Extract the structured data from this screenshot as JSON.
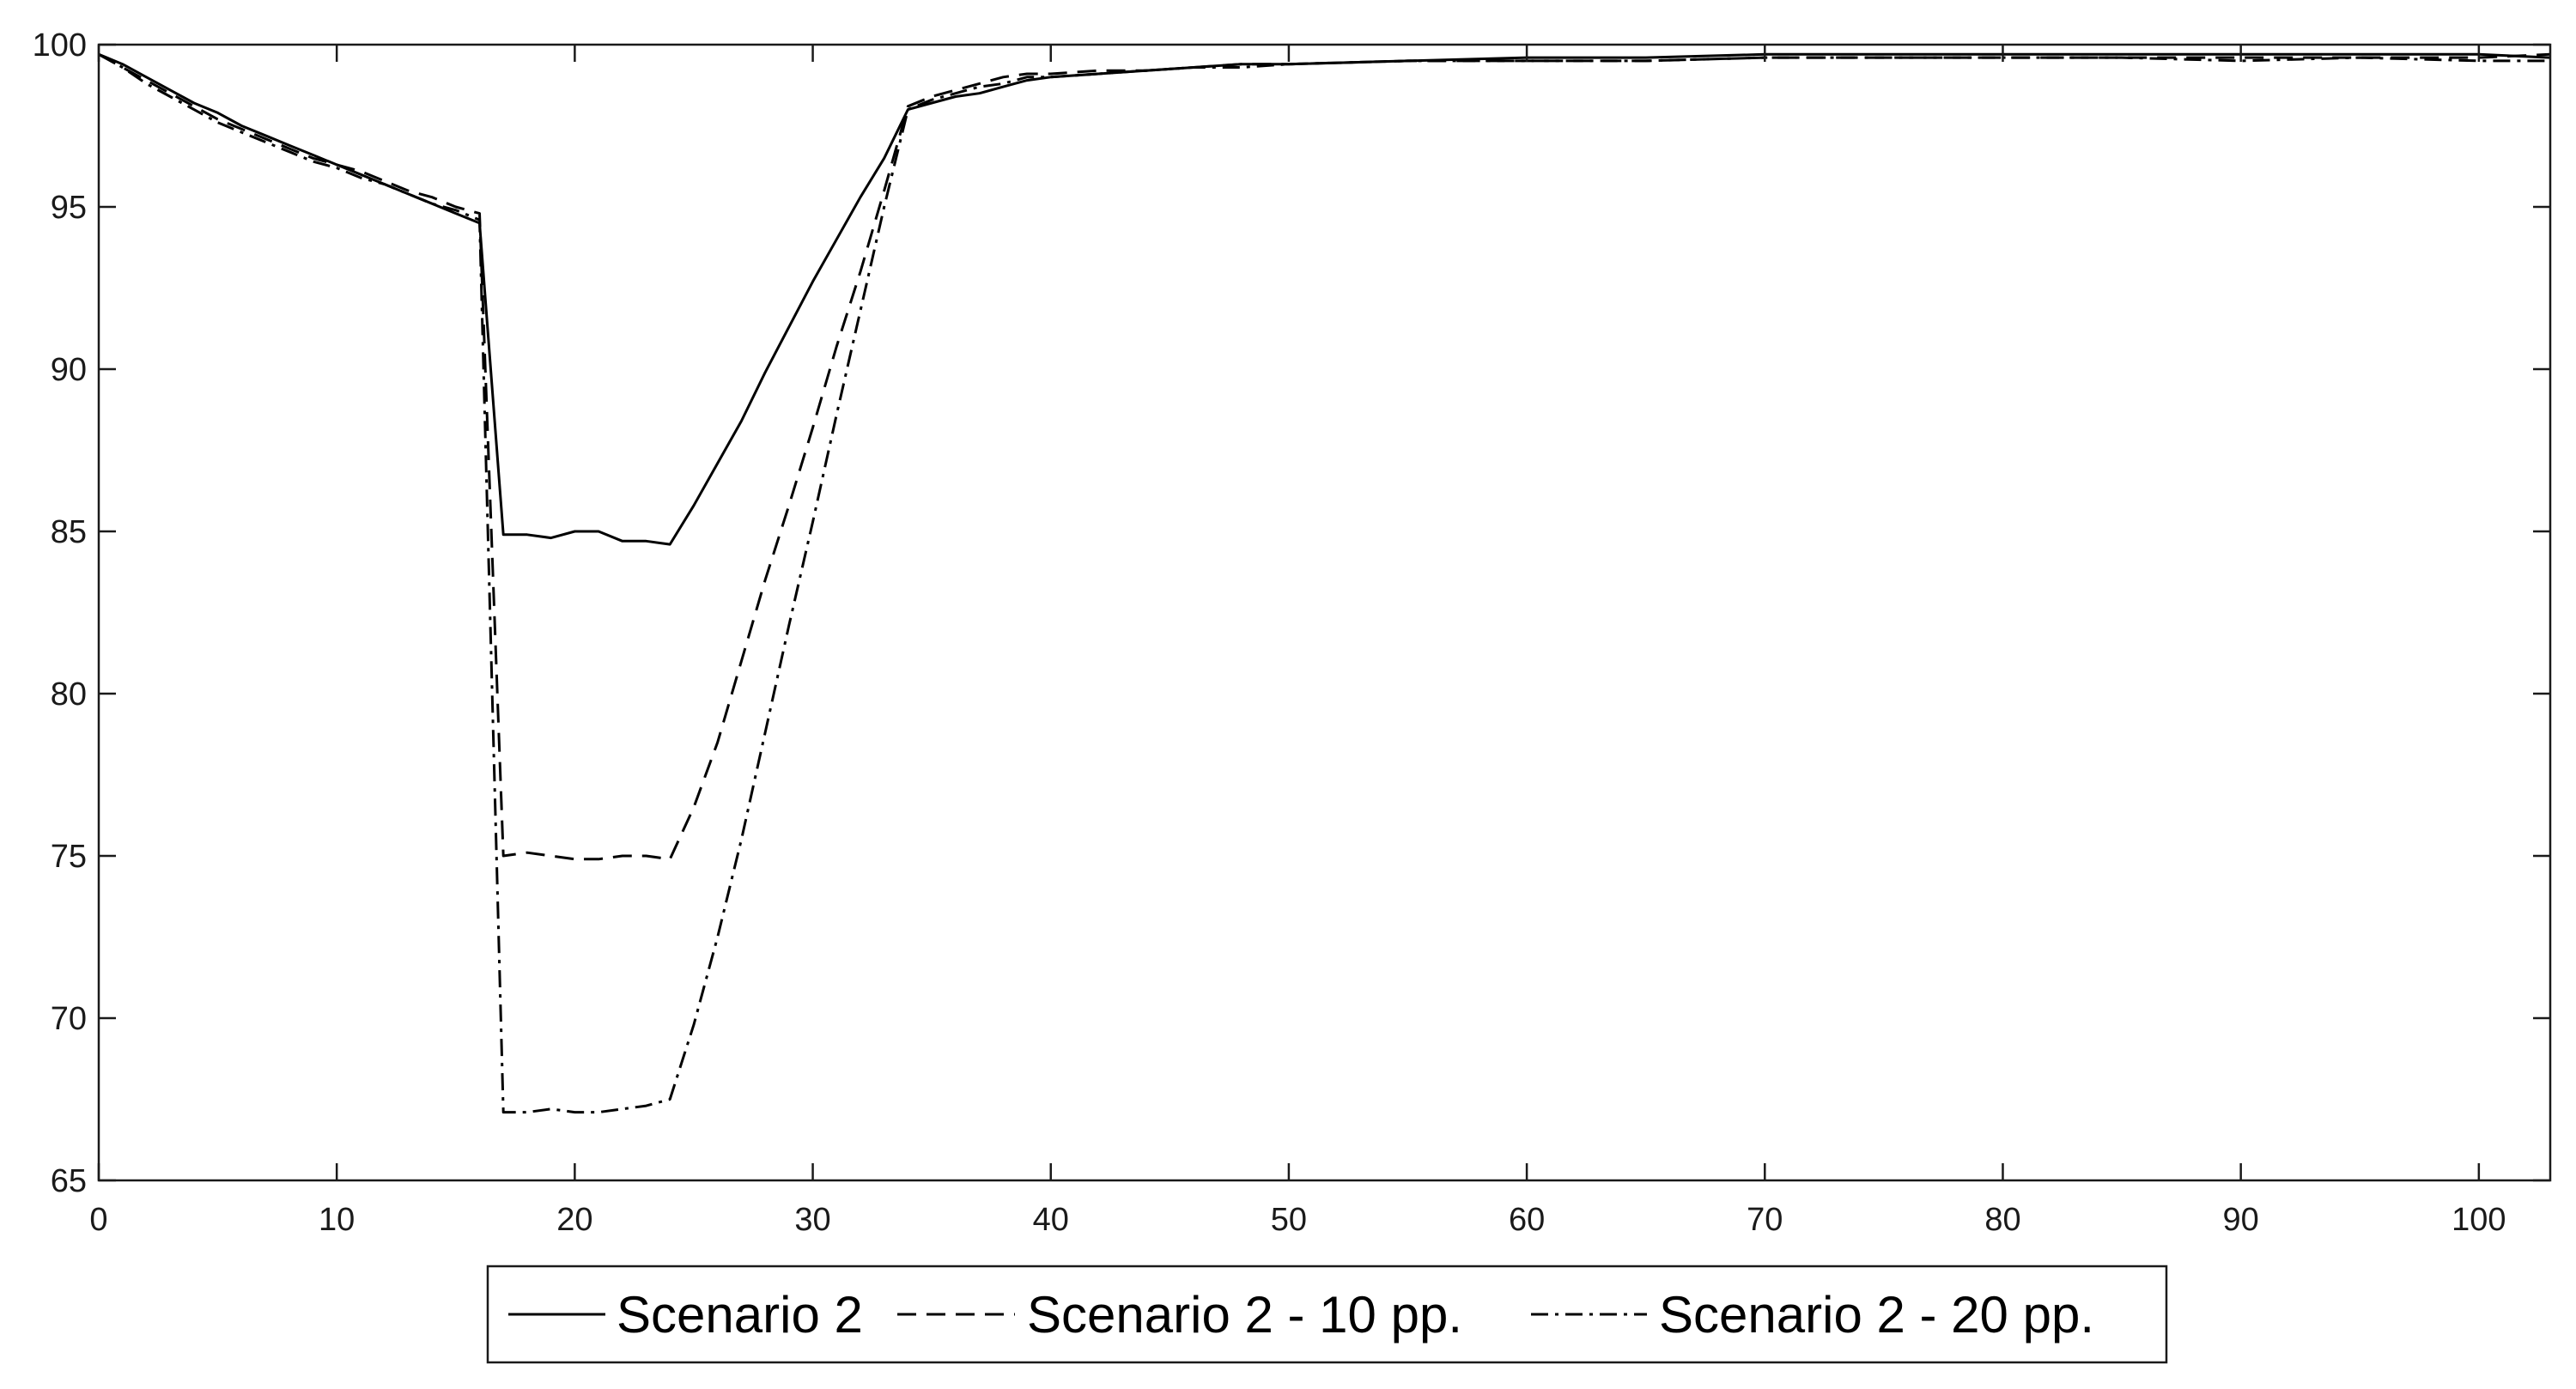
{
  "chart_data": {
    "type": "line",
    "title": "",
    "xlabel": "",
    "ylabel": "",
    "xlim": [
      0,
      103
    ],
    "ylim": [
      65,
      100
    ],
    "xticks": [
      0,
      10,
      20,
      30,
      40,
      50,
      60,
      70,
      80,
      90,
      100
    ],
    "yticks": [
      65,
      70,
      75,
      80,
      85,
      90,
      95,
      100
    ],
    "grid": false,
    "legend_position": "bottom-outside",
    "series": [
      {
        "name": "Scenario 2",
        "style": "solid",
        "color": "#000000",
        "x": [
          0,
          1,
          2,
          3,
          4,
          5,
          6,
          7,
          8,
          9,
          10,
          11,
          12,
          13,
          14,
          15,
          16,
          17,
          18,
          19,
          20,
          21,
          22,
          23,
          24,
          25,
          26,
          27,
          28,
          29,
          30,
          31,
          32,
          33,
          34,
          35,
          36,
          37,
          38,
          39,
          40,
          42,
          44,
          46,
          48,
          50,
          55,
          60,
          65,
          70,
          75,
          80,
          85,
          90,
          95,
          100,
          103
        ],
        "y": [
          99.7,
          99.4,
          99.0,
          98.6,
          98.2,
          97.9,
          97.5,
          97.2,
          96.9,
          96.6,
          96.3,
          96.0,
          95.7,
          95.4,
          95.1,
          94.8,
          94.5,
          84.9,
          84.9,
          84.8,
          85.0,
          85.0,
          84.7,
          84.7,
          84.6,
          85.8,
          87.1,
          88.4,
          89.9,
          91.3,
          92.7,
          94.0,
          95.3,
          96.5,
          98.0,
          98.2,
          98.4,
          98.5,
          98.7,
          98.9,
          99.0,
          99.1,
          99.2,
          99.3,
          99.4,
          99.4,
          99.5,
          99.6,
          99.6,
          99.7,
          99.7,
          99.7,
          99.7,
          99.7,
          99.7,
          99.7,
          99.6
        ]
      },
      {
        "name": "Scenario 2 - 10 pp.",
        "style": "dashed",
        "color": "#000000",
        "x": [
          0,
          1,
          2,
          3,
          4,
          5,
          6,
          7,
          8,
          9,
          10,
          11,
          12,
          13,
          14,
          15,
          16,
          17,
          18,
          19,
          20,
          21,
          22,
          23,
          24,
          25,
          26,
          27,
          28,
          29,
          30,
          31,
          32,
          33,
          34,
          35,
          36,
          37,
          38,
          39,
          40,
          42,
          44,
          46,
          48,
          50,
          55,
          60,
          65,
          70,
          75,
          80,
          85,
          90,
          95,
          100,
          103
        ],
        "y": [
          99.7,
          99.3,
          98.9,
          98.5,
          98.1,
          97.7,
          97.4,
          97.1,
          96.8,
          96.5,
          96.3,
          96.1,
          95.8,
          95.5,
          95.3,
          95.0,
          94.8,
          75.0,
          75.1,
          75.0,
          74.9,
          74.9,
          75.0,
          75.0,
          74.9,
          76.5,
          78.5,
          81.0,
          83.5,
          85.8,
          88.2,
          90.7,
          93.0,
          95.5,
          98.1,
          98.4,
          98.6,
          98.8,
          99.0,
          99.1,
          99.1,
          99.2,
          99.2,
          99.3,
          99.4,
          99.4,
          99.5,
          99.5,
          99.5,
          99.6,
          99.6,
          99.6,
          99.6,
          99.6,
          99.6,
          99.6,
          99.7
        ]
      },
      {
        "name": "Scenario 2 - 20 pp.",
        "style": "dashdot",
        "color": "#000000",
        "x": [
          0,
          1,
          2,
          3,
          4,
          5,
          6,
          7,
          8,
          9,
          10,
          11,
          12,
          13,
          14,
          15,
          16,
          17,
          18,
          19,
          20,
          21,
          22,
          23,
          24,
          25,
          26,
          27,
          28,
          29,
          30,
          31,
          32,
          33,
          34,
          35,
          36,
          37,
          38,
          39,
          40,
          42,
          44,
          46,
          48,
          50,
          55,
          60,
          65,
          70,
          75,
          80,
          85,
          90,
          95,
          100,
          103
        ],
        "y": [
          99.7,
          99.3,
          98.8,
          98.4,
          98.0,
          97.6,
          97.3,
          97.0,
          96.7,
          96.4,
          96.2,
          95.9,
          95.7,
          95.4,
          95.1,
          94.9,
          94.6,
          67.1,
          67.1,
          67.2,
          67.1,
          67.1,
          67.2,
          67.3,
          67.5,
          69.8,
          72.5,
          75.5,
          78.8,
          82.1,
          85.3,
          88.6,
          91.8,
          95.0,
          98.0,
          98.3,
          98.5,
          98.7,
          98.8,
          99.0,
          99.0,
          99.1,
          99.2,
          99.3,
          99.3,
          99.4,
          99.5,
          99.5,
          99.5,
          99.6,
          99.6,
          99.6,
          99.6,
          99.5,
          99.6,
          99.5,
          99.5
        ]
      }
    ]
  }
}
